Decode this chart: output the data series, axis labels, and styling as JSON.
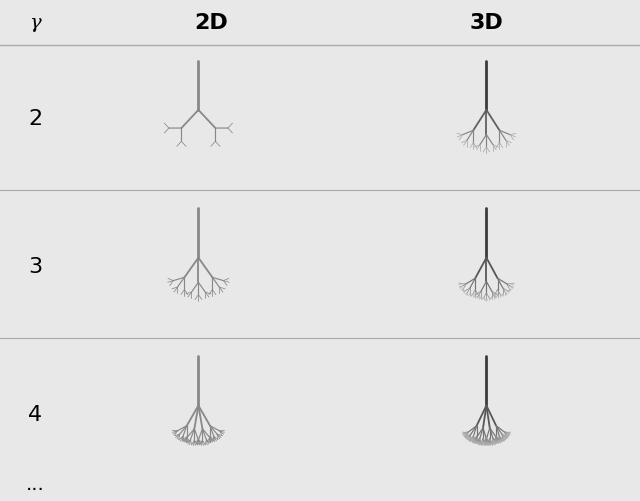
{
  "background_color": "#e8e8e8",
  "header_background": "#ffffff",
  "tree_color_2d": "#888888",
  "gamma_label": "γ",
  "col_labels": [
    "2D",
    "3D"
  ],
  "gamma_vals": [
    2,
    3,
    4
  ],
  "dots_label": "...",
  "figure_width": 6.4,
  "figure_height": 5.01,
  "rows": [
    {
      "gamma": 2,
      "branches_2d": 2,
      "depth_2d": 3,
      "spread_2d": 1.57,
      "scale_2d": 0.52,
      "branches_3d": 3,
      "depth_3d": 3,
      "spread_3d": 1.2,
      "scale_3d": 0.5
    },
    {
      "gamma": 3,
      "branches_2d": 3,
      "depth_2d": 3,
      "spread_2d": 1.3,
      "scale_2d": 0.5,
      "branches_3d": 3,
      "depth_3d": 4,
      "spread_3d": 1.05,
      "scale_3d": 0.48
    },
    {
      "gamma": 4,
      "branches_2d": 4,
      "depth_2d": 3,
      "spread_2d": 1.1,
      "scale_2d": 0.48,
      "branches_3d": 4,
      "depth_3d": 4,
      "spread_3d": 0.95,
      "scale_3d": 0.46
    }
  ],
  "lw_trunk": 2.0,
  "lw_scale": 0.65,
  "lw_min": 0.4,
  "color_dark": [
    60,
    60,
    60
  ],
  "color_light": [
    170,
    170,
    170
  ]
}
